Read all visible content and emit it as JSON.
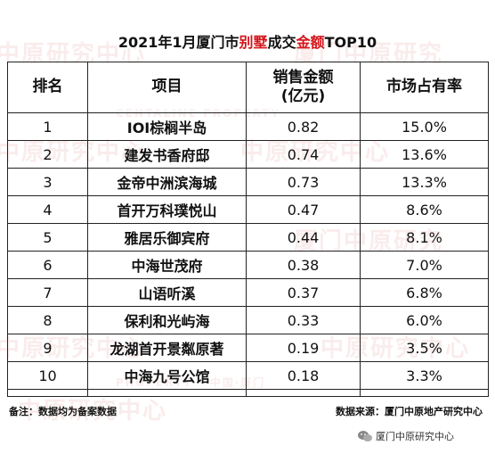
{
  "title": {
    "part1": "2021年1月厦门市",
    "highlight1": "别墅",
    "part2": "成交",
    "highlight2": "金额",
    "part3": "TOP10"
  },
  "table": {
    "headers": {
      "rank": "排名",
      "project": "项目",
      "sales_line1": "销售金额",
      "sales_line2": "(亿元)",
      "share": "市场占有率"
    },
    "rows": [
      {
        "rank": "1",
        "project": "IOI棕榈半岛",
        "sales": "0.82",
        "share": "15.0%"
      },
      {
        "rank": "2",
        "project": "建发书香府邸",
        "sales": "0.74",
        "share": "13.6%"
      },
      {
        "rank": "3",
        "project": "金帝中洲滨海城",
        "sales": "0.73",
        "share": "13.3%"
      },
      {
        "rank": "4",
        "project": "首开万科璞悦山",
        "sales": "0.47",
        "share": "8.6%"
      },
      {
        "rank": "5",
        "project": "雅居乐御宾府",
        "sales": "0.44",
        "share": "8.1%"
      },
      {
        "rank": "6",
        "project": "中海世茂府",
        "sales": "0.38",
        "share": "7.0%"
      },
      {
        "rank": "7",
        "project": "山语听溪",
        "sales": "0.37",
        "share": "6.8%"
      },
      {
        "rank": "8",
        "project": "保利和光屿海",
        "sales": "0.33",
        "share": "6.0%"
      },
      {
        "rank": "9",
        "project": "龙湖首开景粼原著",
        "sales": "0.19",
        "share": "3.5%"
      },
      {
        "rank": "10",
        "project": "中海九号公馆",
        "sales": "0.18",
        "share": "3.3%"
      }
    ]
  },
  "footer": {
    "note": "备注：数据均为备案数据",
    "source": "数据来源：厦门中原地产研究中心"
  },
  "watermark": {
    "text_cn": "中原研究中心",
    "text_cn2": "厦门中原研究",
    "text_en": "PROPERTY · 中国·厦门",
    "text_en2": "CENTALINE PROPERTY"
  },
  "wechat": {
    "icon": "wechat-icon",
    "label": "厦门中原研究中心"
  },
  "colors": {
    "highlight": "#d4141a",
    "watermark": "#c82828"
  }
}
